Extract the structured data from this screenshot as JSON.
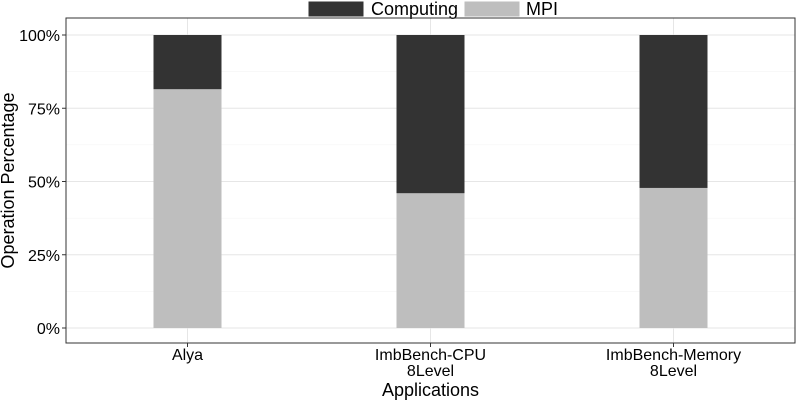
{
  "chart_data": {
    "type": "bar",
    "stacked": true,
    "percent": true,
    "categories": [
      [
        "Alya"
      ],
      [
        "ImbBench-CPU",
        "8Level"
      ],
      [
        "ImbBench-Memory",
        "8Level"
      ]
    ],
    "series": [
      {
        "name": "Computing",
        "values": [
          18.5,
          54,
          52.2
        ],
        "color": "#333333"
      },
      {
        "name": "MPI",
        "values": [
          81.5,
          46,
          47.8
        ],
        "color": "#bebebe"
      }
    ],
    "stack_order_bottom_to_top": [
      "MPI",
      "Computing"
    ],
    "ylim": [
      0,
      100
    ],
    "yticks": [
      0,
      25,
      50,
      75,
      100
    ],
    "ytick_labels": [
      "0%",
      "25%",
      "50%",
      "75%",
      "100%"
    ],
    "xlabel": "Applications",
    "ylabel": "Operation Percentage",
    "legend_position": "top",
    "grid": true
  }
}
